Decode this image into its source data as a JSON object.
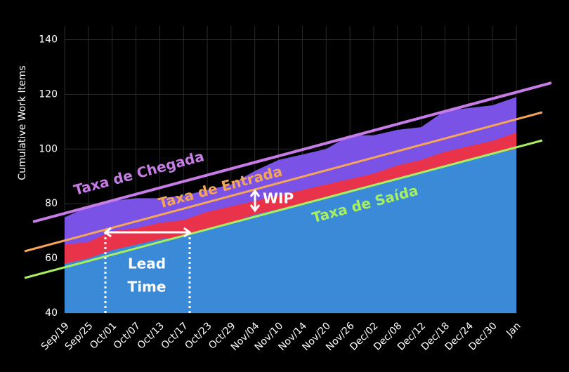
{
  "chart_data": {
    "type": "area",
    "y_label": "Cumulative Work Items",
    "categories": [
      "Sep/19",
      "Sep/25",
      "Oct/01",
      "Oct/07",
      "Oct/13",
      "Oct/17",
      "Oct/23",
      "Oct/29",
      "Nov/04",
      "Nov/10",
      "Nov/14",
      "Nov/20",
      "Nov/26",
      "Dec/02",
      "Dec/08",
      "Dec/12",
      "Dec/18",
      "Dec/24",
      "Dec/30",
      "Jan"
    ],
    "series": [
      {
        "color": "#7b52e6",
        "values": [
          75,
          79,
          81,
          82,
          82,
          83,
          85,
          87,
          92,
          96,
          98,
          100,
          105,
          105,
          107,
          108,
          114,
          115,
          116,
          119
        ]
      },
      {
        "color": "#e8334a",
        "values": [
          65,
          66,
          70,
          71,
          73,
          74,
          77,
          79,
          81,
          83,
          85,
          87,
          89,
          91,
          94,
          96,
          99,
          101,
          103,
          106
        ]
      },
      {
        "color": "#3a8ad8",
        "values": [
          58,
          60,
          63,
          65,
          67,
          68,
          71,
          73,
          76,
          78,
          80,
          82,
          85,
          87,
          89,
          91,
          94,
          96,
          98,
          100
        ]
      }
    ],
    "ylim": [
      40,
      145
    ],
    "yticks": [
      40,
      60,
      80,
      100,
      120,
      140
    ],
    "grid": true,
    "annotations": {
      "arrival": "Taxa de Chegada",
      "entry": "Taxa de Entrada",
      "exit": "Taxa de Saída",
      "wip": "WIP",
      "lead_time": [
        "Lead",
        "Time"
      ]
    }
  }
}
